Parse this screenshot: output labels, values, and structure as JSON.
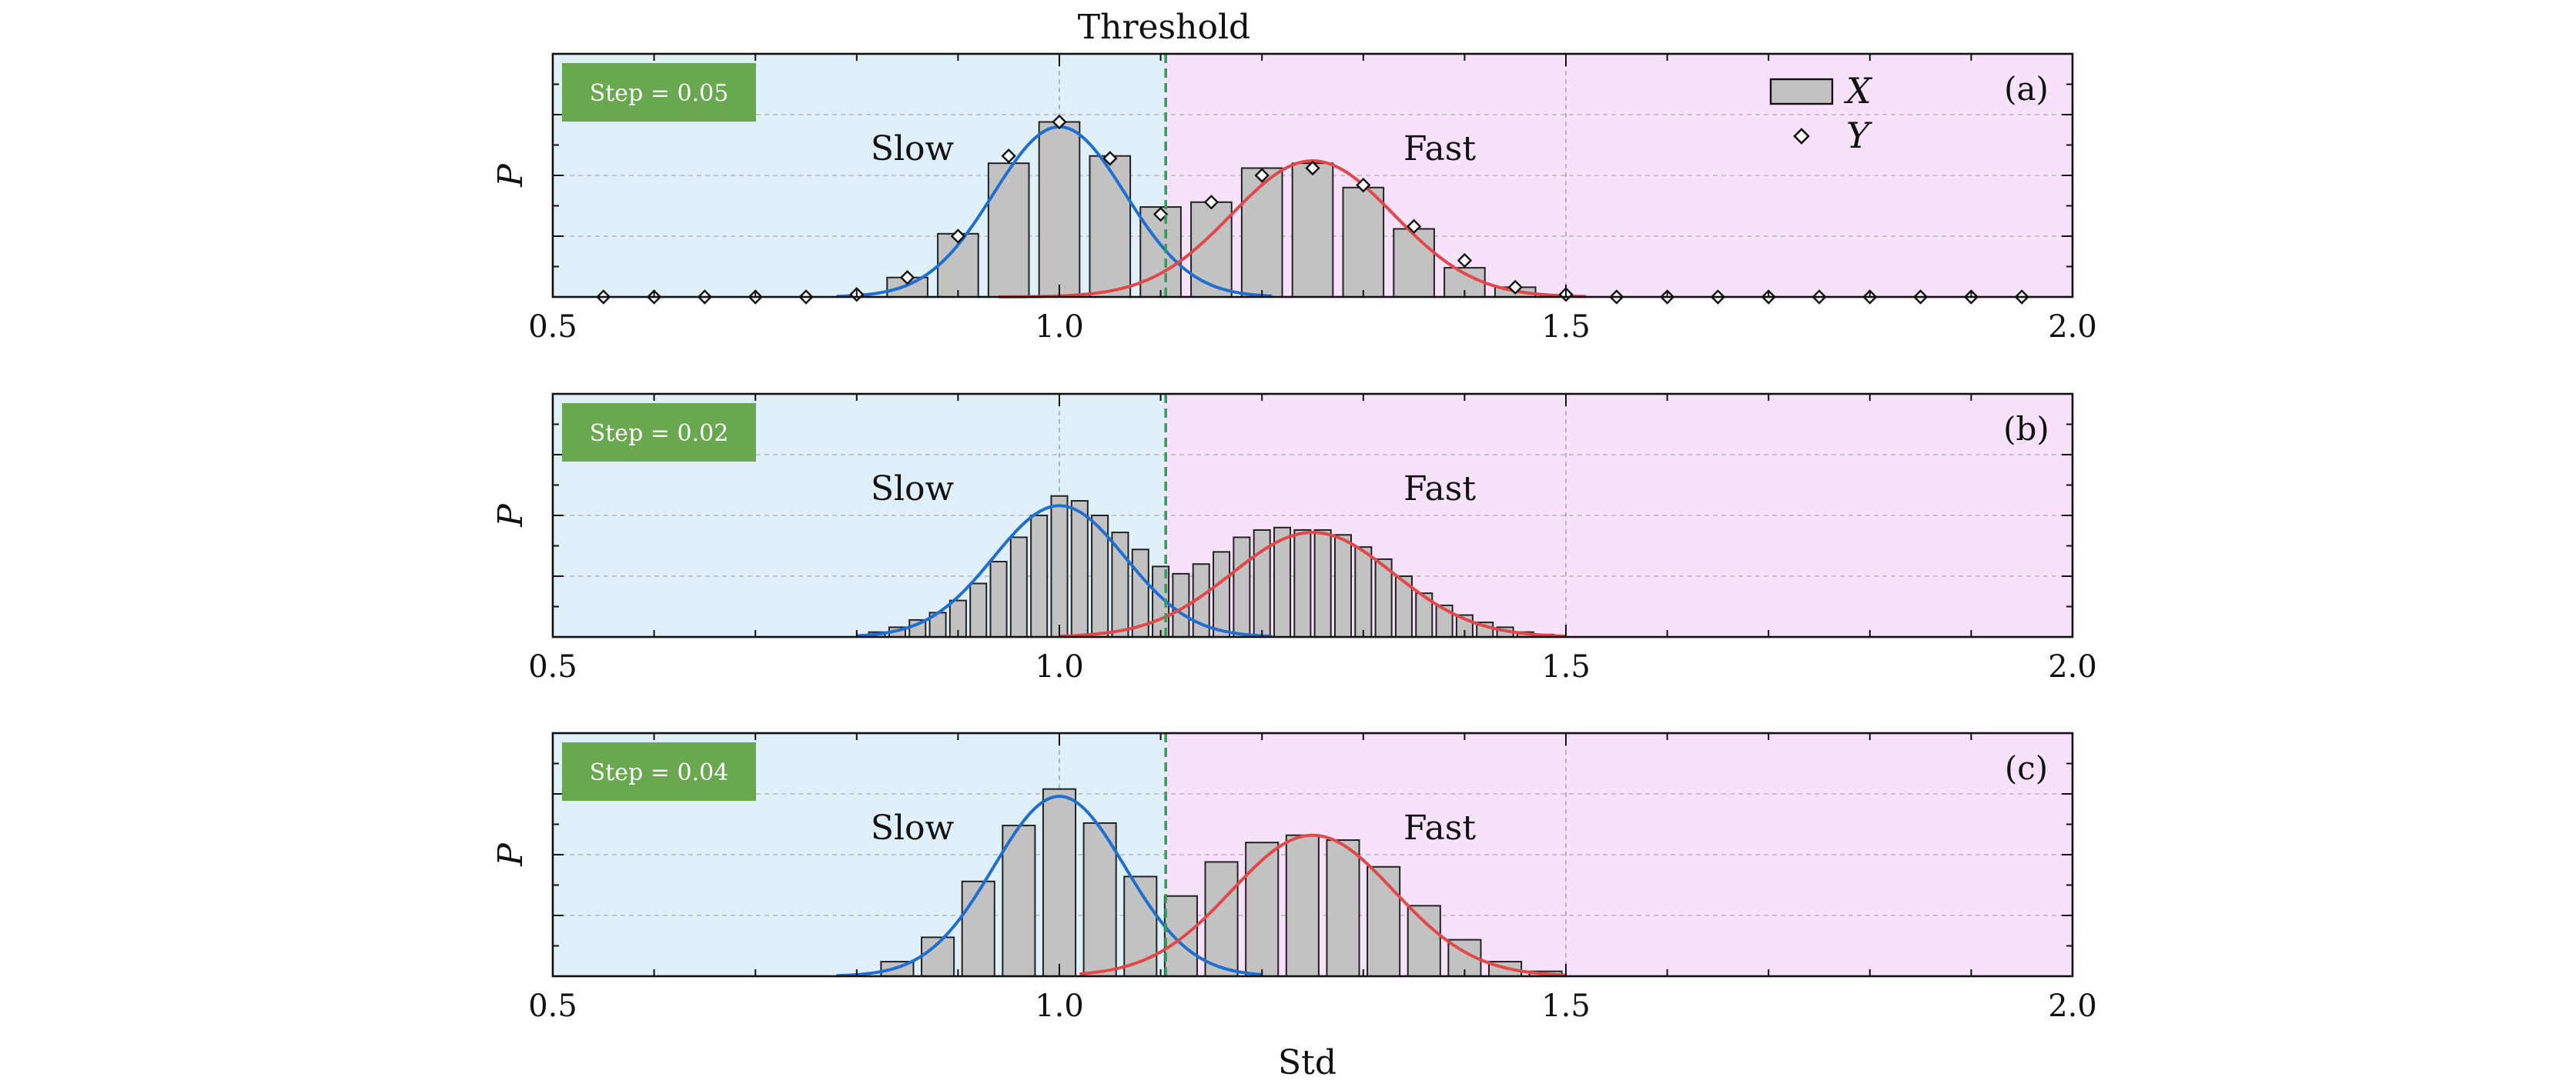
{
  "chart_data": {
    "type": "bar",
    "top_title": "Threshold",
    "xlabel": "Std",
    "ylabel": "P",
    "xlim": [
      0.5,
      2.0
    ],
    "xticks": [
      "0.5",
      "1.0",
      "1.5",
      "2.0"
    ],
    "threshold": 1.105,
    "regions": [
      {
        "name": "slow",
        "label": "Slow",
        "range": [
          0.5,
          1.105
        ],
        "color": "#dff0fb"
      },
      {
        "name": "fast",
        "label": "Fast",
        "range": [
          1.105,
          2.0
        ],
        "color": "#f8e1fb"
      }
    ],
    "colors": {
      "bar_fill": "#c2c2c2",
      "slow_curve": "#1f6fd1",
      "fast_curve": "#e34848",
      "threshold_line": "#2e9e5a",
      "step_badge": "#6aa84f"
    },
    "legend": {
      "bar_label": "X",
      "marker_label": "Y",
      "position": "top-right"
    },
    "panels": [
      {
        "id": "a",
        "panel_label": "(a)",
        "step_label": "Step = 0.05",
        "step": 0.05,
        "ylim": [
          0,
          1.0
        ],
        "show_legend": true,
        "bars": {
          "x": [
            0.85,
            0.9,
            0.95,
            1.0,
            1.05,
            1.1,
            1.15,
            1.2,
            1.25,
            1.3,
            1.35,
            1.4,
            1.45
          ],
          "y": [
            0.08,
            0.26,
            0.55,
            0.72,
            0.58,
            0.37,
            0.39,
            0.53,
            0.55,
            0.45,
            0.28,
            0.12,
            0.04
          ]
        },
        "markers": {
          "x": [
            0.55,
            0.6,
            0.65,
            0.7,
            0.75,
            0.8,
            0.85,
            0.9,
            0.95,
            1.0,
            1.05,
            1.1,
            1.15,
            1.2,
            1.25,
            1.3,
            1.35,
            1.4,
            1.45,
            1.5,
            1.55,
            1.6,
            1.65,
            1.7,
            1.75,
            1.8,
            1.85,
            1.9,
            1.95
          ],
          "y": [
            0,
            0,
            0,
            0,
            0,
            0.01,
            0.08,
            0.25,
            0.58,
            0.72,
            0.57,
            0.34,
            0.39,
            0.5,
            0.53,
            0.46,
            0.29,
            0.15,
            0.04,
            0.01,
            0,
            0,
            0,
            0,
            0,
            0,
            0,
            0,
            0
          ]
        },
        "slow_curve": {
          "mean": 1.0,
          "sd": 0.065,
          "peak": 0.7,
          "domain": [
            0.78,
            1.21
          ]
        },
        "fast_curve": {
          "mean": 1.25,
          "sd": 0.08,
          "peak": 0.56,
          "domain": [
            0.94,
            1.52
          ]
        }
      },
      {
        "id": "b",
        "panel_label": "(b)",
        "step_label": "Step = 0.02",
        "step": 0.02,
        "ylim": [
          0,
          1.0
        ],
        "show_legend": false,
        "bars": {
          "x": [
            0.82,
            0.84,
            0.86,
            0.88,
            0.9,
            0.92,
            0.94,
            0.96,
            0.98,
            1.0,
            1.02,
            1.04,
            1.06,
            1.08,
            1.1,
            1.12,
            1.14,
            1.16,
            1.18,
            1.2,
            1.22,
            1.24,
            1.26,
            1.28,
            1.3,
            1.32,
            1.34,
            1.36,
            1.38,
            1.4,
            1.42,
            1.44,
            1.46,
            1.48
          ],
          "y": [
            0.02,
            0.04,
            0.07,
            0.1,
            0.15,
            0.22,
            0.31,
            0.41,
            0.5,
            0.58,
            0.56,
            0.5,
            0.43,
            0.36,
            0.29,
            0.26,
            0.3,
            0.35,
            0.41,
            0.44,
            0.45,
            0.44,
            0.44,
            0.42,
            0.37,
            0.32,
            0.25,
            0.18,
            0.13,
            0.09,
            0.06,
            0.04,
            0.02,
            0.01
          ]
        },
        "slow_curve": {
          "mean": 1.0,
          "sd": 0.065,
          "peak": 0.54,
          "domain": [
            0.8,
            1.21
          ]
        },
        "fast_curve": {
          "mean": 1.25,
          "sd": 0.08,
          "peak": 0.43,
          "domain": [
            1.0,
            1.5
          ]
        }
      },
      {
        "id": "c",
        "panel_label": "(c)",
        "step_label": "Step = 0.04",
        "step": 0.04,
        "ylim": [
          0,
          1.0
        ],
        "show_legend": false,
        "bars": {
          "x": [
            0.84,
            0.88,
            0.92,
            0.96,
            1.0,
            1.04,
            1.08,
            1.12,
            1.16,
            1.2,
            1.24,
            1.28,
            1.32,
            1.36,
            1.4,
            1.44,
            1.48
          ],
          "y": [
            0.06,
            0.16,
            0.39,
            0.62,
            0.77,
            0.63,
            0.41,
            0.33,
            0.47,
            0.55,
            0.58,
            0.56,
            0.45,
            0.29,
            0.15,
            0.06,
            0.02
          ]
        },
        "slow_curve": {
          "mean": 1.0,
          "sd": 0.065,
          "peak": 0.74,
          "domain": [
            0.78,
            1.2
          ]
        },
        "fast_curve": {
          "mean": 1.25,
          "sd": 0.08,
          "peak": 0.58,
          "domain": [
            1.02,
            1.5
          ]
        }
      }
    ]
  }
}
